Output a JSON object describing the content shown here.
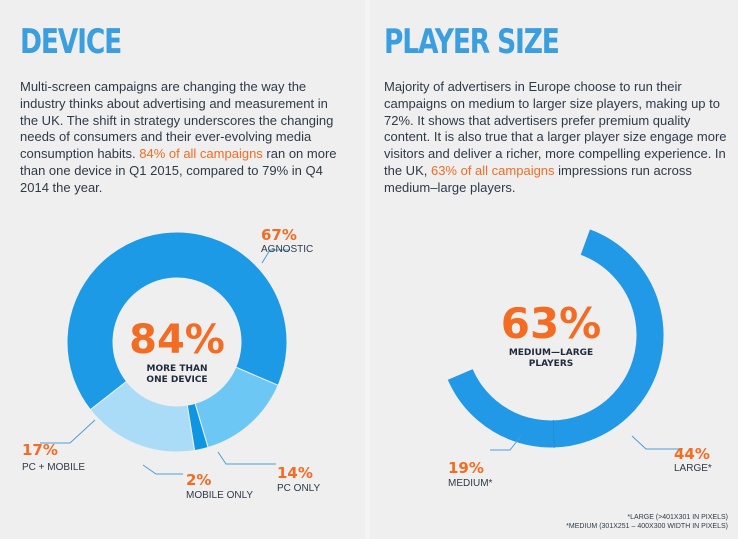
{
  "device": {
    "title": "DEVICE",
    "text_pre": "Multi-screen campaigns are changing the way the industry thinks about advertising and measurement in the UK. The shift in strategy underscores the changing needs of consumers and their ever-evolving media consumption habits. ",
    "text_highlight": "84% of all campaigns",
    "text_post": " ran on more than one device in Q1 2015, compared to 79% in Q4 2014 the year.",
    "center_value": "84%",
    "center_label_1": "MORE THAN",
    "center_label_2": "ONE DEVICE"
  },
  "player": {
    "title": "PLAYER SIZE",
    "text_pre": "Majority of advertisers in Europe choose to run their campaigns on medium to larger size players, making up to 72%. It shows that advertisers prefer premium quality content. It is also true that a larger player size engage more visitors and deliver a richer, more compelling experience. In the UK, ",
    "text_highlight": "63% of all campaigns",
    "text_post": " impressions run across medium–large players.",
    "center_value": "63%",
    "center_label_1": "MEDIUM—LARGE",
    "center_label_2": "PLAYERS",
    "footnote_1": "*LARGE (>401X301 IN PIXELS)",
    "footnote_2": "*MEDIUM (301X251 – 400X300 WIDTH IN PIXELS)"
  },
  "chart_data": [
    {
      "type": "pie",
      "title": "DEVICE",
      "categories": [
        "AGNOSTIC",
        "PC ONLY",
        "MOBILE ONLY",
        "PC + MOBILE"
      ],
      "values": [
        67,
        14,
        2,
        17
      ],
      "value_labels": [
        "67%",
        "14%",
        "2%",
        "17%"
      ],
      "colors": [
        "#1c9ae5",
        "#6cc7f5",
        "#0f96e2",
        "#aadcf8"
      ],
      "donut": true
    },
    {
      "type": "pie",
      "title": "PLAYER SIZE",
      "categories": [
        "LARGE*",
        "MEDIUM*"
      ],
      "values": [
        44,
        19
      ],
      "value_labels": [
        "44%",
        "19%"
      ],
      "colors": [
        "#2199e6",
        "#2199e6"
      ],
      "donut": true,
      "partial_ring": true
    }
  ]
}
